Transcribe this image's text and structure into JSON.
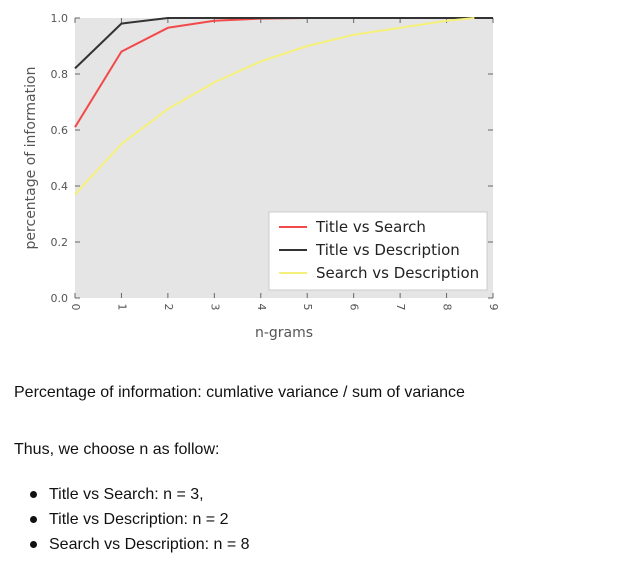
{
  "chart_data": {
    "type": "line",
    "xlabel": "n-grams",
    "ylabel": "percentage of information",
    "xlim": [
      0,
      9
    ],
    "ylim": [
      0.0,
      1.0
    ],
    "xticks": [
      "0",
      "1",
      "2",
      "3",
      "4",
      "5",
      "6",
      "7",
      "8",
      "9"
    ],
    "yticks": [
      "0.0",
      "0.2",
      "0.4",
      "0.6",
      "0.8",
      "1.0"
    ],
    "grid": false,
    "legend_position": "lower-right",
    "series": [
      {
        "name": "Title vs Search",
        "color": "#f24a4a",
        "x": [
          0,
          1,
          2,
          3,
          4,
          5,
          6,
          7,
          8,
          9
        ],
        "y": [
          0.61,
          0.88,
          0.965,
          0.99,
          0.998,
          1.0,
          1.0,
          1.0,
          1.0,
          1.0
        ]
      },
      {
        "name": "Title vs Description",
        "color": "#333333",
        "x": [
          0,
          1,
          2,
          3,
          4,
          5,
          6,
          7,
          8,
          9
        ],
        "y": [
          0.82,
          0.98,
          1.0,
          1.0,
          1.0,
          1.0,
          1.0,
          1.0,
          1.0,
          1.0
        ]
      },
      {
        "name": "Search vs Description",
        "color": "#f5f07a",
        "x": [
          0,
          1,
          2,
          3,
          4,
          5,
          6,
          7,
          8,
          8.6
        ],
        "y": [
          0.37,
          0.55,
          0.675,
          0.77,
          0.845,
          0.9,
          0.94,
          0.965,
          0.99,
          1.0
        ]
      }
    ]
  },
  "text": {
    "caption": "Percentage of information: cumlative variance / sum of variance",
    "intro": "Thus, we choose n as follow:",
    "choices": [
      "Title vs Search: n = 3,",
      "Title vs Description: n = 2",
      "Search vs Description: n = 8"
    ]
  }
}
